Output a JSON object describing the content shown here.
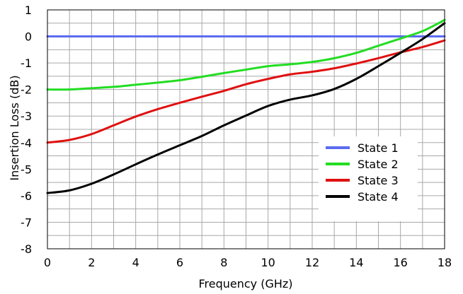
{
  "chart_data": {
    "type": "line",
    "title": "",
    "xlabel": "Frequency (GHz)",
    "ylabel": "Insertion Loss (dB)",
    "xlim": [
      0,
      18
    ],
    "ylim": [
      -8,
      1
    ],
    "xticks": [
      0,
      2,
      4,
      6,
      8,
      10,
      12,
      14,
      16,
      18
    ],
    "yticks": [
      1,
      0,
      -1,
      -2,
      -3,
      -4,
      -5,
      -6,
      -7,
      -8
    ],
    "grid": true,
    "legend_position": "bottom-right",
    "series": [
      {
        "name": "State 1",
        "color": "#5b6cf0",
        "x": [
          0,
          18
        ],
        "y": [
          0,
          0
        ]
      },
      {
        "name": "State 2",
        "color": "#22dd22",
        "x": [
          0,
          1,
          2,
          3,
          4,
          5,
          6,
          7,
          8,
          9,
          10,
          11,
          12,
          13,
          14,
          15,
          16,
          17,
          18
        ],
        "y": [
          -2.0,
          -2.0,
          -1.95,
          -1.9,
          -1.82,
          -1.74,
          -1.65,
          -1.52,
          -1.38,
          -1.25,
          -1.12,
          -1.05,
          -0.96,
          -0.82,
          -0.62,
          -0.35,
          -0.08,
          0.2,
          0.62
        ]
      },
      {
        "name": "State 3",
        "color": "#e01010",
        "x": [
          0,
          1,
          2,
          3,
          4,
          5,
          6,
          7,
          8,
          9,
          10,
          11,
          12,
          13,
          14,
          15,
          16,
          17,
          18
        ],
        "y": [
          -4.0,
          -3.9,
          -3.68,
          -3.35,
          -3.02,
          -2.74,
          -2.5,
          -2.27,
          -2.05,
          -1.8,
          -1.6,
          -1.43,
          -1.33,
          -1.2,
          -1.02,
          -0.82,
          -0.6,
          -0.4,
          -0.15
        ]
      },
      {
        "name": "State 4",
        "color": "#000000",
        "x": [
          0,
          1,
          2,
          3,
          4,
          5,
          6,
          7,
          8,
          9,
          10,
          11,
          12,
          13,
          14,
          15,
          16,
          17,
          18
        ],
        "y": [
          -5.9,
          -5.8,
          -5.55,
          -5.2,
          -4.82,
          -4.45,
          -4.1,
          -3.75,
          -3.35,
          -2.98,
          -2.62,
          -2.38,
          -2.22,
          -1.98,
          -1.6,
          -1.12,
          -0.62,
          -0.1,
          0.5
        ]
      }
    ]
  }
}
